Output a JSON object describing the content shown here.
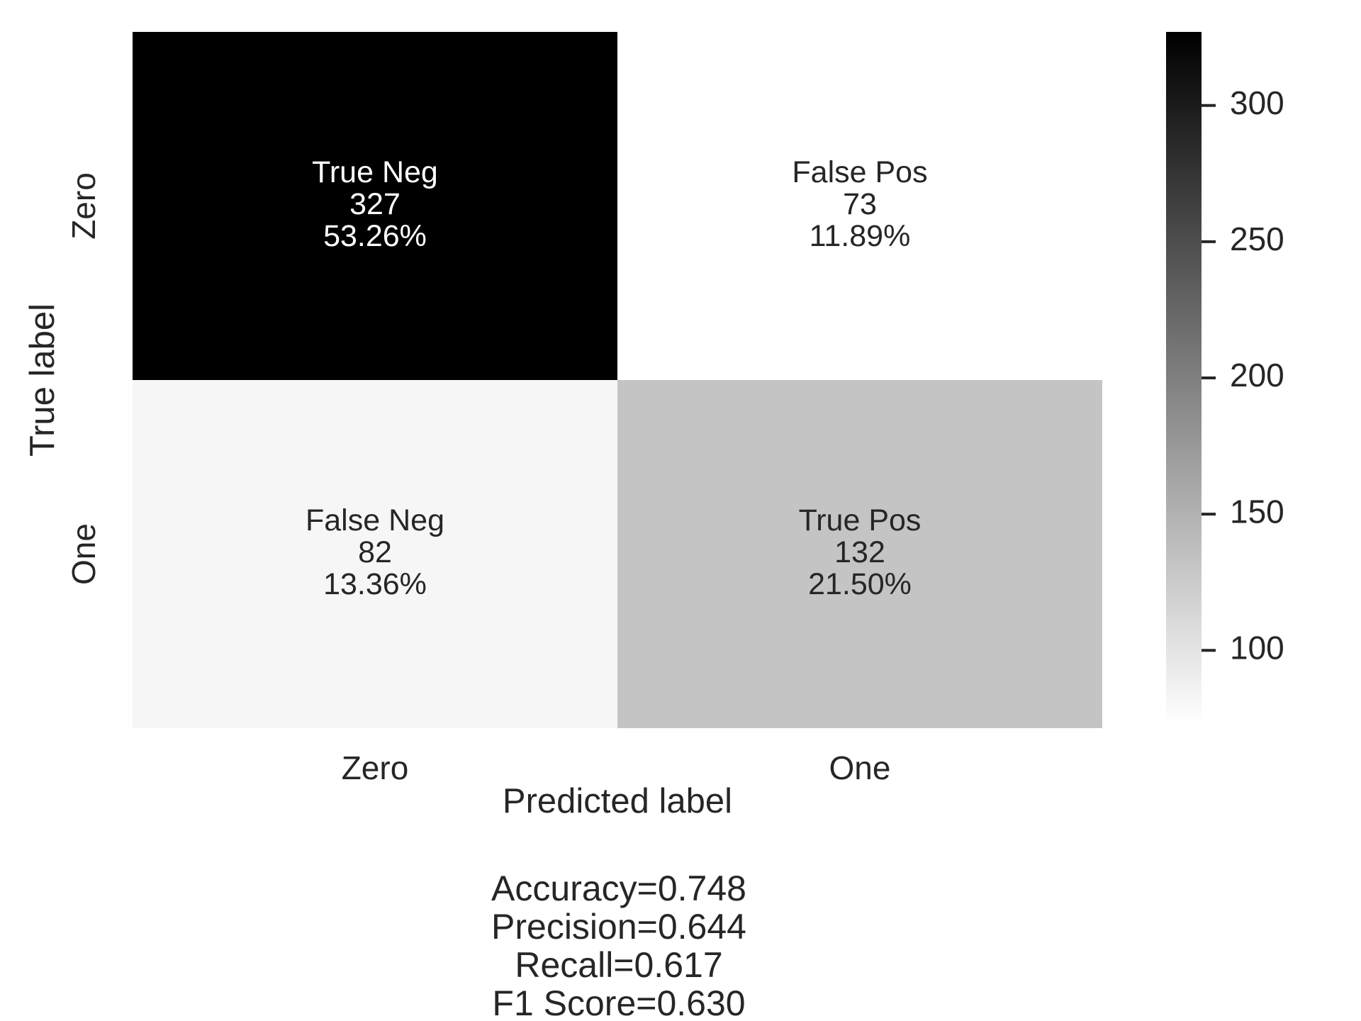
{
  "chart_data": {
    "type": "heatmap",
    "row_labels": [
      "Zero",
      "One"
    ],
    "col_labels": [
      "Zero",
      "One"
    ],
    "values": [
      [
        327,
        73
      ],
      [
        82,
        132
      ]
    ],
    "cell_names": [
      [
        "True Neg",
        "False Pos"
      ],
      [
        "False Neg",
        "True Pos"
      ]
    ],
    "cell_percents": [
      [
        "53.26%",
        "11.89%"
      ],
      [
        "13.36%",
        "21.50%"
      ]
    ],
    "xlabel": "Predicted label",
    "ylabel": "True label",
    "stats": [
      "Accuracy=0.748",
      "Precision=0.644",
      "Recall=0.617",
      "F1 Score=0.630"
    ],
    "colormap": "Greys",
    "colorbar": {
      "range": [
        73,
        327
      ],
      "ticks": [
        100,
        150,
        200,
        250,
        300
      ]
    },
    "grid": false
  }
}
